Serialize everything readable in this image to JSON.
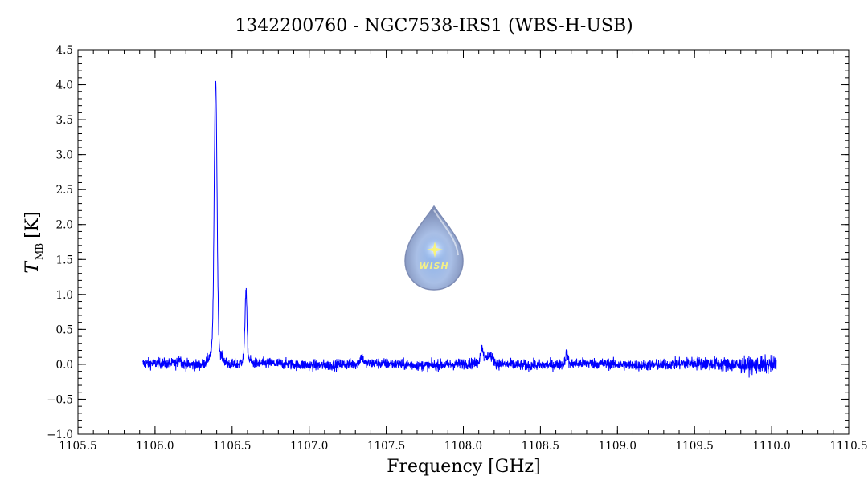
{
  "chart_data": {
    "type": "line",
    "title": "1342200760 - NGC7538-IRS1 (WBS-H-USB)",
    "xlabel": "Frequency [GHz]",
    "ylabel_main": "T",
    "ylabel_sub": "MB",
    "ylabel_unit": "[K]",
    "xlim": [
      1105.5,
      1110.5
    ],
    "ylim": [
      -1.0,
      4.5
    ],
    "x_ticks": [
      1105.5,
      1106.0,
      1106.5,
      1107.0,
      1107.5,
      1108.0,
      1108.5,
      1109.0,
      1109.5,
      1110.0,
      1110.5
    ],
    "x_tick_labels": [
      "1105.5",
      "1106.0",
      "1106.5",
      "1107.0",
      "1107.5",
      "1108.0",
      "1108.5",
      "1109.0",
      "1109.5",
      "1110.0",
      "1110.5"
    ],
    "y_ticks": [
      -1.0,
      -0.5,
      0.0,
      0.5,
      1.0,
      1.5,
      2.0,
      2.5,
      3.0,
      3.5,
      4.0,
      4.5
    ],
    "y_tick_labels": [
      "−1.0",
      "−0.5",
      "0.0",
      "0.5",
      "1.0",
      "1.5",
      "2.0",
      "2.5",
      "3.0",
      "3.5",
      "4.0",
      "4.5"
    ],
    "series": [
      {
        "color": "#0000ff",
        "x_range": [
          1105.92,
          1110.03
        ],
        "noise_rms": 0.055,
        "features": [
          {
            "center": 1106.393,
            "peak": 3.85,
            "width": 0.009
          },
          {
            "center": 1106.393,
            "peak": 0.25,
            "width": 0.035
          },
          {
            "center": 1106.59,
            "peak": 0.95,
            "width": 0.006
          },
          {
            "center": 1106.59,
            "peak": 0.12,
            "width": 0.02
          },
          {
            "center": 1108.12,
            "peak": 0.22,
            "width": 0.01
          },
          {
            "center": 1108.17,
            "peak": 0.12,
            "width": 0.02
          },
          {
            "center": 1107.34,
            "peak": 0.1,
            "width": 0.01
          },
          {
            "center": 1108.67,
            "peak": 0.15,
            "width": 0.008
          },
          {
            "center": 1106.16,
            "peak": 0.08,
            "width": 0.01
          }
        ]
      }
    ],
    "watermark": {
      "text": "WISH",
      "icon": "water-drop-star-icon"
    }
  }
}
